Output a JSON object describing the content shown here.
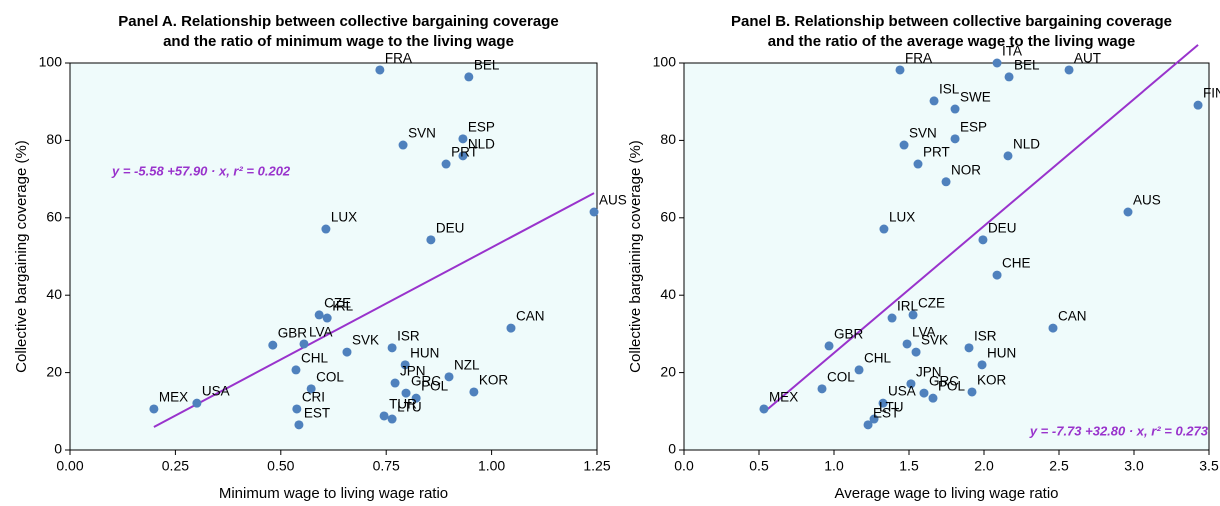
{
  "chart_data": [
    {
      "type": "scatter",
      "title": [
        "Panel A. Relationship between collective bargaining coverage",
        "and the ratio of minimum wage to the living wage"
      ],
      "x_label": "Minimum wage to living wage ratio",
      "y_label": "Collective bargaining coverage (%)",
      "color": "#4f81bd",
      "labels": [
        "FRA",
        "BEL",
        "ESP",
        "SVN",
        "NLD",
        "PRT",
        "LUX",
        "DEU",
        "AUS",
        "CZE",
        "IRL",
        "CAN",
        "GBR",
        "LVA",
        "ISR",
        "SVK",
        "HUN",
        "NZL",
        "JPN",
        "GRC",
        "POL",
        "CHL",
        "COL",
        "CRI",
        "EST",
        "TUR",
        "LTU",
        "KOR",
        "MEX",
        "USA"
      ],
      "x": [
        0.735,
        0.946,
        0.932,
        0.79,
        0.932,
        0.892,
        0.607,
        0.856,
        1.243,
        0.591,
        0.61,
        1.046,
        0.481,
        0.555,
        0.764,
        0.657,
        0.795,
        0.899,
        0.771,
        0.797,
        0.821,
        0.536,
        0.572,
        0.538,
        0.543,
        0.745,
        0.764,
        0.958,
        0.199,
        0.301
      ],
      "values": [
        98.2,
        96.4,
        80.4,
        78.8,
        76.0,
        73.9,
        57.1,
        54.3,
        61.5,
        34.9,
        34.1,
        31.5,
        27.1,
        27.4,
        26.4,
        25.3,
        22.0,
        18.9,
        17.3,
        14.7,
        13.4,
        20.7,
        15.8,
        10.6,
        6.5,
        8.8,
        8.0,
        15.0,
        10.6,
        12.1
      ],
      "fit": {
        "intercept": -5.58,
        "slope": 57.9,
        "color": "#9933cc",
        "label": "y = -5.58 +57.90 · x,  r² = 0.202"
      },
      "xlim": [
        0,
        1.25
      ],
      "xticks": [
        {
          "value": 0,
          "label": "0.00"
        },
        {
          "value": 0.25,
          "label": "0.25"
        },
        {
          "value": 0.5,
          "label": "0.50"
        },
        {
          "value": 0.75,
          "label": "0.75"
        },
        {
          "value": 1,
          "label": "1.00"
        },
        {
          "value": 1.25,
          "label": "1.25"
        }
      ],
      "ylim": [
        0,
        100
      ],
      "yticks": [
        0,
        20,
        40,
        60,
        80,
        100
      ]
    },
    {
      "type": "scatter",
      "title": [
        "Panel B. Relationship between collective bargaining coverage",
        "and the ratio of the average wage to the living wage"
      ],
      "x_label": "Average wage to living wage ratio",
      "y_label": "Collective bargaining coverage (%)",
      "color": "#4f81bd",
      "labels": [
        "ITA",
        "FRA",
        "AUT",
        "BEL",
        "ISL",
        "SWE",
        "FIN",
        "SVN",
        "ESP",
        "NLD",
        "PRT",
        "NOR",
        "AUS",
        "LUX",
        "DEU",
        "CHE",
        "IRL",
        "CZE",
        "CAN",
        "GBR",
        "CHL",
        "LVA",
        "ISR",
        "SVK",
        "HUN",
        "JPN",
        "GRC",
        "POL",
        "KOR",
        "MEX",
        "COL",
        "USA",
        "LTU",
        "EST"
      ],
      "x": [
        2.087,
        1.44,
        2.567,
        2.167,
        1.667,
        1.807,
        3.427,
        1.467,
        1.807,
        2.16,
        1.56,
        1.747,
        2.96,
        1.333,
        1.993,
        2.087,
        1.387,
        1.527,
        2.46,
        0.967,
        1.167,
        1.487,
        1.9,
        1.547,
        1.987,
        1.513,
        1.6,
        1.66,
        1.92,
        0.533,
        0.92,
        1.327,
        1.267,
        1.227
      ],
      "values": [
        100,
        98.2,
        98.2,
        96.4,
        90.2,
        88.1,
        89.1,
        78.8,
        80.4,
        76.0,
        73.9,
        69.3,
        61.5,
        57.1,
        54.3,
        45.2,
        34.1,
        34.9,
        31.5,
        26.9,
        20.7,
        27.4,
        26.4,
        25.3,
        22.0,
        17.1,
        14.7,
        13.4,
        15.0,
        10.6,
        15.8,
        12.1,
        8.0,
        6.5
      ],
      "fit": {
        "intercept": -7.73,
        "slope": 32.8,
        "color": "#9933cc",
        "label": "y = -7.73 +32.80 · x,  r² = 0.273"
      },
      "xlim": [
        0,
        3.5
      ],
      "xticks": [
        {
          "value": 0,
          "label": "0.0"
        },
        0.5,
        {
          "value": 1,
          "label": "1.0"
        },
        1.5,
        {
          "value": 2,
          "label": "2.0"
        },
        2.5,
        {
          "value": 3,
          "label": "3.0"
        },
        3.5
      ],
      "ylim": [
        0,
        100
      ],
      "yticks": [
        0,
        20,
        40,
        60,
        80,
        100
      ]
    }
  ]
}
